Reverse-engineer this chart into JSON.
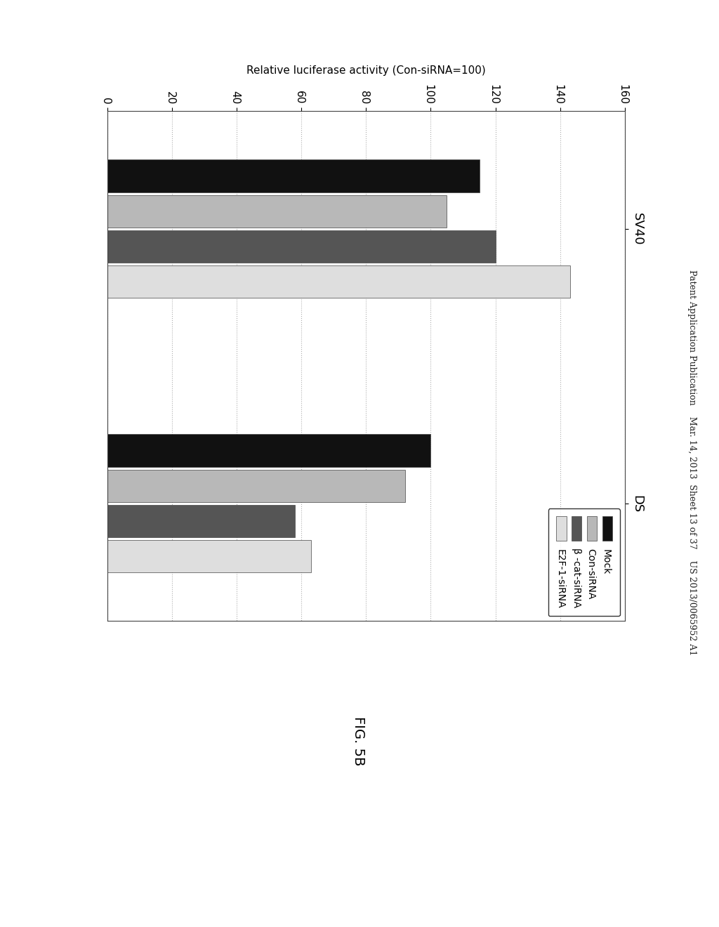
{
  "title": "FIG. 5B",
  "ylabel": "Relative luciferase activity (Con-siRNA=100)",
  "ylim": [
    0,
    160
  ],
  "yticks": [
    0,
    20,
    40,
    60,
    80,
    100,
    120,
    140,
    160
  ],
  "groups": [
    "SV40",
    "DS"
  ],
  "series": [
    "Mock",
    "Con-siRNA",
    "β -cat-siRNA",
    "E2F-1-siRNA"
  ],
  "colors": [
    "#111111",
    "#b8b8b8",
    "#555555",
    "#dedede"
  ],
  "values": {
    "SV40": [
      115,
      105,
      120,
      143
    ],
    "DS": [
      100,
      92,
      58,
      63
    ]
  },
  "bar_width": 0.18,
  "background_color": "#ffffff",
  "plot_bg_color": "#ffffff",
  "header_text": "Patent Application Publication    Mar. 14, 2013  Sheet 13 of 37    US 2013/0065952 A1",
  "grid_color": "#999999"
}
